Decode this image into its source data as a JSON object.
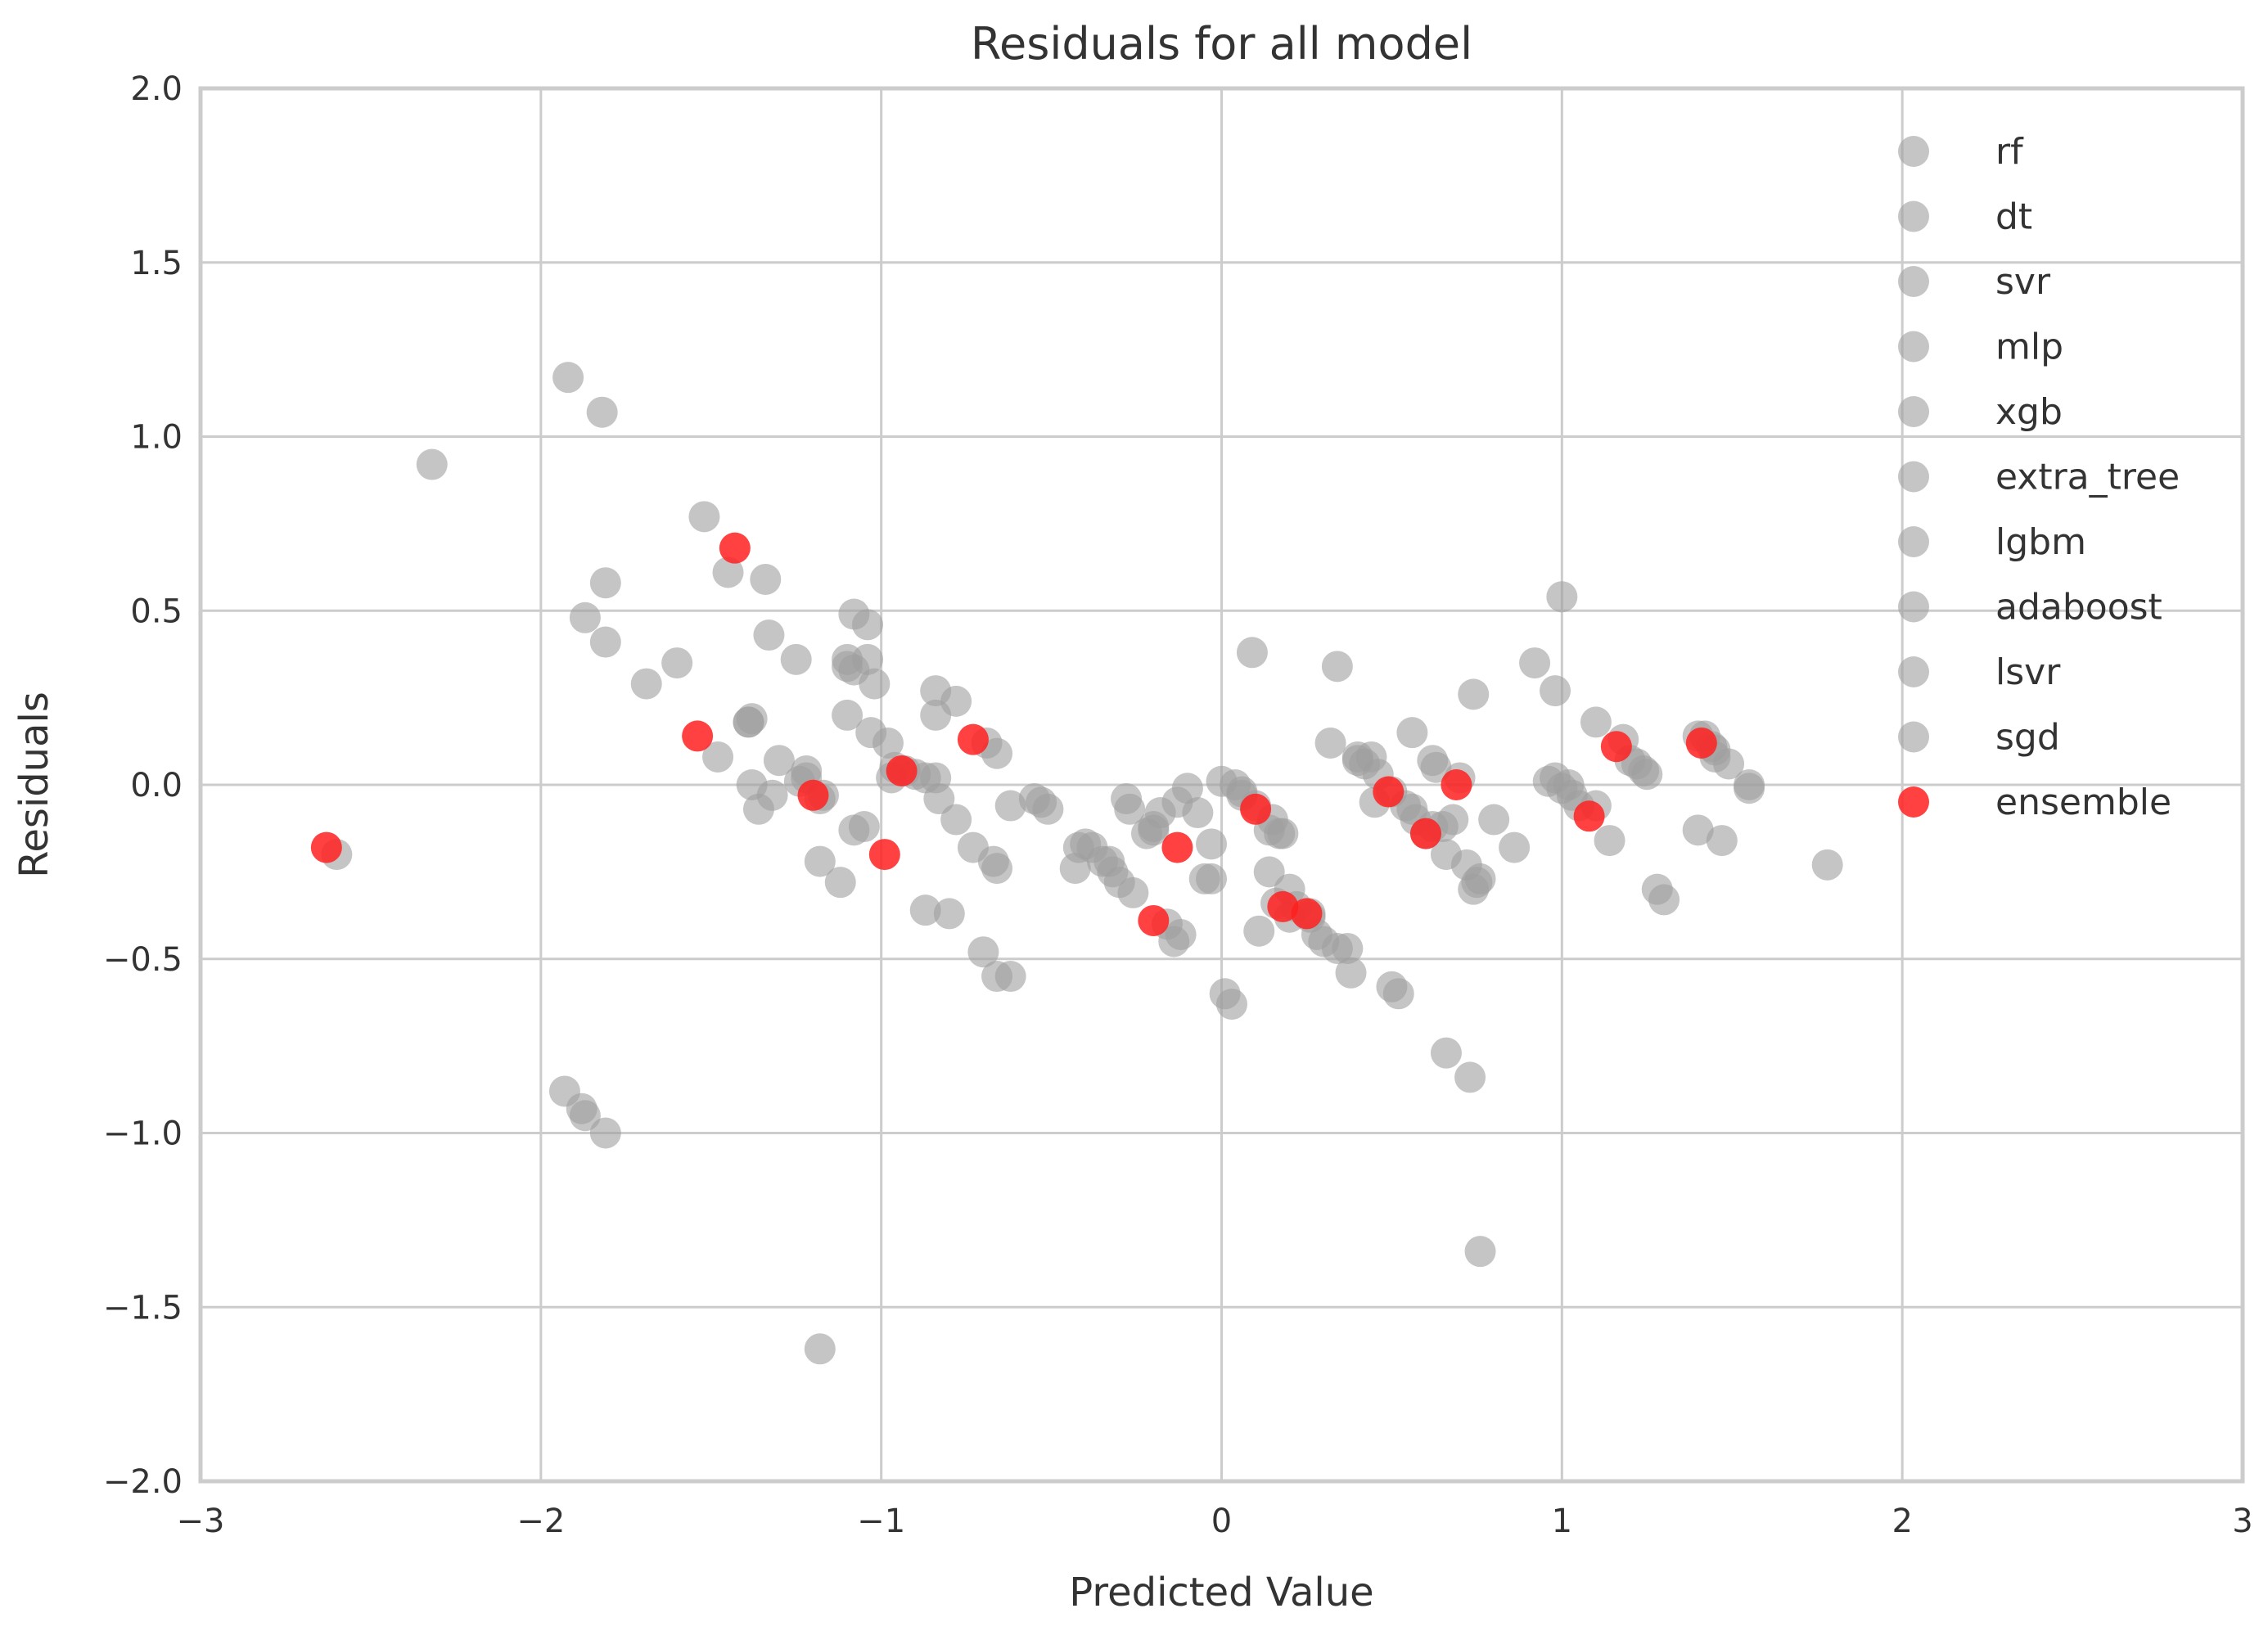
{
  "chart_data": {
    "type": "scatter",
    "title": "Residuals for all model",
    "xlabel": "Predicted Value",
    "ylabel": "Residuals",
    "xlim": [
      -3,
      3
    ],
    "ylim": [
      -2,
      2
    ],
    "xticks": [
      -3,
      -2,
      -1,
      0,
      1,
      2,
      3
    ],
    "xtick_labels": [
      "−3",
      "−2",
      "−1",
      "0",
      "1",
      "2",
      "3"
    ],
    "yticks": [
      -2,
      -1.5,
      -1,
      -0.5,
      0,
      0.5,
      1,
      1.5,
      2
    ],
    "ytick_labels": [
      "−2.0",
      "−1.5",
      "−1.0",
      "−0.5",
      "0.0",
      "0.5",
      "1.0",
      "1.5",
      "2.0"
    ],
    "grid": true,
    "legend_position": "top-right",
    "colors": {
      "models": "#9e9e9e",
      "ensemble": "#ff2020",
      "grid": "#cccccc",
      "frame": "#cccccc"
    },
    "series": [
      {
        "name": "rf",
        "color": "#9e9e9e",
        "points": [
          [
            -2.32,
            0.92
          ],
          [
            -1.92,
            1.17
          ],
          [
            -1.87,
            0.48
          ],
          [
            -1.18,
            -0.22
          ],
          [
            -1.1,
            0.2
          ],
          [
            -0.93,
            0.04
          ],
          [
            -0.7,
            -0.48
          ],
          [
            -0.62,
            -0.55
          ],
          [
            -0.4,
            -0.17
          ],
          [
            -0.12,
            -0.43
          ],
          [
            0.09,
            0.38
          ],
          [
            0.2,
            -0.3
          ],
          [
            0.5,
            -0.58
          ],
          [
            0.56,
            0.15
          ],
          [
            0.74,
            0.26
          ],
          [
            0.98,
            0.27
          ],
          [
            1.14,
            -0.16
          ],
          [
            1.28,
            -0.3
          ],
          [
            1.78,
            -0.23
          ]
        ]
      },
      {
        "name": "dt",
        "color": "#9e9e9e",
        "points": [
          [
            -1.88,
            -0.93
          ],
          [
            -1.81,
            -1.0
          ],
          [
            -1.48,
            0.08
          ],
          [
            -1.3,
            0.07
          ],
          [
            -1.1,
            0.36
          ],
          [
            -1.04,
            0.46
          ],
          [
            -0.83,
            -0.04
          ],
          [
            -0.66,
            -0.24
          ],
          [
            -0.3,
            -0.28
          ],
          [
            -0.22,
            -0.14
          ],
          [
            -0.05,
            -0.27
          ],
          [
            0.11,
            -0.42
          ],
          [
            0.28,
            -0.43
          ],
          [
            0.52,
            -0.6
          ],
          [
            0.62,
            0.07
          ],
          [
            0.66,
            -0.77
          ],
          [
            0.76,
            -0.27
          ],
          [
            1.0,
            0.54
          ],
          [
            1.2,
            0.07
          ],
          [
            1.4,
            0.14
          ]
        ]
      },
      {
        "name": "svr",
        "color": "#9e9e9e",
        "points": [
          [
            -1.93,
            -0.88
          ],
          [
            -1.82,
            1.07
          ],
          [
            -1.81,
            0.41
          ],
          [
            -1.39,
            0.18
          ],
          [
            -1.33,
            0.43
          ],
          [
            -1.08,
            0.33
          ],
          [
            -0.84,
            0.27
          ],
          [
            -0.78,
            -0.1
          ],
          [
            -0.55,
            -0.04
          ],
          [
            -0.28,
            -0.04
          ],
          [
            -0.2,
            -0.12
          ],
          [
            0.0,
            0.01
          ],
          [
            0.14,
            -0.25
          ],
          [
            0.3,
            -0.45
          ],
          [
            0.44,
            0.08
          ],
          [
            0.54,
            -0.06
          ],
          [
            0.72,
            -0.23
          ],
          [
            0.92,
            0.35
          ],
          [
            1.1,
            0.18
          ],
          [
            1.42,
            0.14
          ]
        ]
      },
      {
        "name": "mlp",
        "color": "#9e9e9e",
        "points": [
          [
            -1.87,
            -0.95
          ],
          [
            -1.81,
            0.58
          ],
          [
            -1.6,
            0.35
          ],
          [
            -1.38,
            0.0
          ],
          [
            -1.17,
            -0.03
          ],
          [
            -1.03,
            0.15
          ],
          [
            -0.87,
            -0.36
          ],
          [
            -0.69,
            0.12
          ],
          [
            -0.53,
            -0.05
          ],
          [
            -0.35,
            -0.22
          ],
          [
            -0.1,
            -0.01
          ],
          [
            0.03,
            -0.63
          ],
          [
            0.16,
            -0.34
          ],
          [
            0.37,
            -0.47
          ],
          [
            0.62,
            -0.12
          ],
          [
            0.76,
            -1.34
          ],
          [
            0.98,
            0.02
          ],
          [
            1.22,
            0.06
          ],
          [
            1.45,
            0.08
          ]
        ]
      },
      {
        "name": "xgb",
        "color": "#9e9e9e",
        "points": [
          [
            -1.52,
            0.77
          ],
          [
            -1.34,
            0.59
          ],
          [
            -1.36,
            -0.07
          ],
          [
            -1.25,
            0.36
          ],
          [
            -1.08,
            -0.13
          ],
          [
            -1.02,
            0.29
          ],
          [
            -0.8,
            -0.37
          ],
          [
            -0.73,
            -0.18
          ],
          [
            -0.51,
            -0.07
          ],
          [
            -0.32,
            -0.25
          ],
          [
            -0.13,
            -0.05
          ],
          [
            0.01,
            -0.6
          ],
          [
            0.2,
            -0.38
          ],
          [
            0.4,
            0.07
          ],
          [
            0.57,
            -0.1
          ],
          [
            0.8,
            -0.1
          ],
          [
            1.03,
            -0.03
          ],
          [
            1.25,
            0.03
          ],
          [
            1.55,
            0.0
          ]
        ]
      },
      {
        "name": "extra_tree",
        "color": "#9e9e9e",
        "points": [
          [
            -2.6,
            -0.2
          ],
          [
            -1.69,
            0.29
          ],
          [
            -1.38,
            0.19
          ],
          [
            -1.22,
            0.04
          ],
          [
            -1.12,
            -0.28
          ],
          [
            -0.98,
            0.12
          ],
          [
            -0.78,
            0.24
          ],
          [
            -0.66,
            -0.55
          ],
          [
            -0.27,
            -0.07
          ],
          [
            -0.14,
            -0.45
          ],
          [
            0.04,
            0.0
          ],
          [
            0.22,
            -0.35
          ],
          [
            0.34,
            0.34
          ],
          [
            0.5,
            -0.02
          ],
          [
            0.63,
            0.05
          ],
          [
            0.73,
            -0.84
          ],
          [
            1.05,
            -0.06
          ],
          [
            1.3,
            -0.33
          ],
          [
            1.47,
            -0.16
          ]
        ]
      },
      {
        "name": "lgbm",
        "color": "#9e9e9e",
        "points": [
          [
            -1.39,
            0.18
          ],
          [
            -1.18,
            -0.04
          ],
          [
            -1.08,
            0.49
          ],
          [
            -0.9,
            0.03
          ],
          [
            -0.66,
            0.09
          ],
          [
            -0.33,
            -0.22
          ],
          [
            -0.2,
            -0.13
          ],
          [
            -0.07,
            -0.08
          ],
          [
            0.1,
            -0.06
          ],
          [
            0.18,
            -0.14
          ],
          [
            0.32,
            0.12
          ],
          [
            0.4,
            0.08
          ],
          [
            0.6,
            -0.14
          ],
          [
            0.7,
            0.02
          ],
          [
            0.75,
            -0.28
          ],
          [
            1.0,
            -0.01
          ],
          [
            1.45,
            0.1
          ],
          [
            1.55,
            -0.01
          ]
        ]
      },
      {
        "name": "adaboost",
        "color": "#9e9e9e",
        "points": [
          [
            -1.32,
            -0.03
          ],
          [
            -1.18,
            -1.62
          ],
          [
            -1.05,
            -0.12
          ],
          [
            -0.96,
            0.05
          ],
          [
            -0.84,
            0.2
          ],
          [
            -0.62,
            -0.06
          ],
          [
            -0.42,
            -0.18
          ],
          [
            -0.26,
            -0.31
          ],
          [
            -0.03,
            -0.17
          ],
          [
            0.06,
            -0.03
          ],
          [
            0.14,
            -0.13
          ],
          [
            0.26,
            -0.38
          ],
          [
            0.38,
            -0.54
          ],
          [
            0.42,
            0.06
          ],
          [
            0.56,
            -0.07
          ],
          [
            0.66,
            -0.2
          ],
          [
            0.86,
            -0.18
          ],
          [
            1.1,
            -0.06
          ],
          [
            1.4,
            -0.13
          ]
        ]
      },
      {
        "name": "lsvr",
        "color": "#9e9e9e",
        "points": [
          [
            -1.22,
            0.02
          ],
          [
            -1.1,
            0.34
          ],
          [
            -0.97,
            0.02
          ],
          [
            -0.84,
            0.02
          ],
          [
            -0.38,
            -0.18
          ],
          [
            -0.16,
            -0.4
          ],
          [
            -0.03,
            -0.27
          ],
          [
            0.15,
            -0.1
          ],
          [
            0.26,
            -0.37
          ],
          [
            0.45,
            -0.05
          ],
          [
            0.68,
            -0.1
          ],
          [
            0.96,
            0.01
          ],
          [
            1.24,
            0.04
          ],
          [
            1.49,
            0.06
          ]
        ]
      },
      {
        "name": "sgd",
        "color": "#9e9e9e",
        "points": [
          [
            -1.45,
            0.61
          ],
          [
            -1.24,
            0.01
          ],
          [
            -1.04,
            0.36
          ],
          [
            -0.87,
            0.02
          ],
          [
            -0.67,
            -0.22
          ],
          [
            -0.43,
            -0.24
          ],
          [
            -0.18,
            -0.08
          ],
          [
            0.06,
            -0.02
          ],
          [
            0.17,
            -0.14
          ],
          [
            0.34,
            -0.47
          ],
          [
            0.46,
            0.03
          ],
          [
            0.65,
            -0.12
          ],
          [
            0.74,
            -0.3
          ],
          [
            1.02,
            0.0
          ],
          [
            1.18,
            0.13
          ],
          [
            1.44,
            0.11
          ]
        ]
      },
      {
        "name": "ensemble",
        "color": "#ff2020",
        "points": [
          [
            -2.63,
            -0.18
          ],
          [
            -1.54,
            0.14
          ],
          [
            -1.43,
            0.68
          ],
          [
            -1.2,
            -0.03
          ],
          [
            -0.99,
            -0.2
          ],
          [
            -0.94,
            0.04
          ],
          [
            -0.73,
            0.13
          ],
          [
            -0.2,
            -0.39
          ],
          [
            -0.13,
            -0.18
          ],
          [
            0.1,
            -0.07
          ],
          [
            0.18,
            -0.35
          ],
          [
            0.25,
            -0.37
          ],
          [
            0.49,
            -0.02
          ],
          [
            0.6,
            -0.14
          ],
          [
            0.69,
            0.0
          ],
          [
            1.08,
            -0.09
          ],
          [
            1.16,
            0.11
          ],
          [
            1.41,
            0.12
          ]
        ]
      }
    ]
  }
}
